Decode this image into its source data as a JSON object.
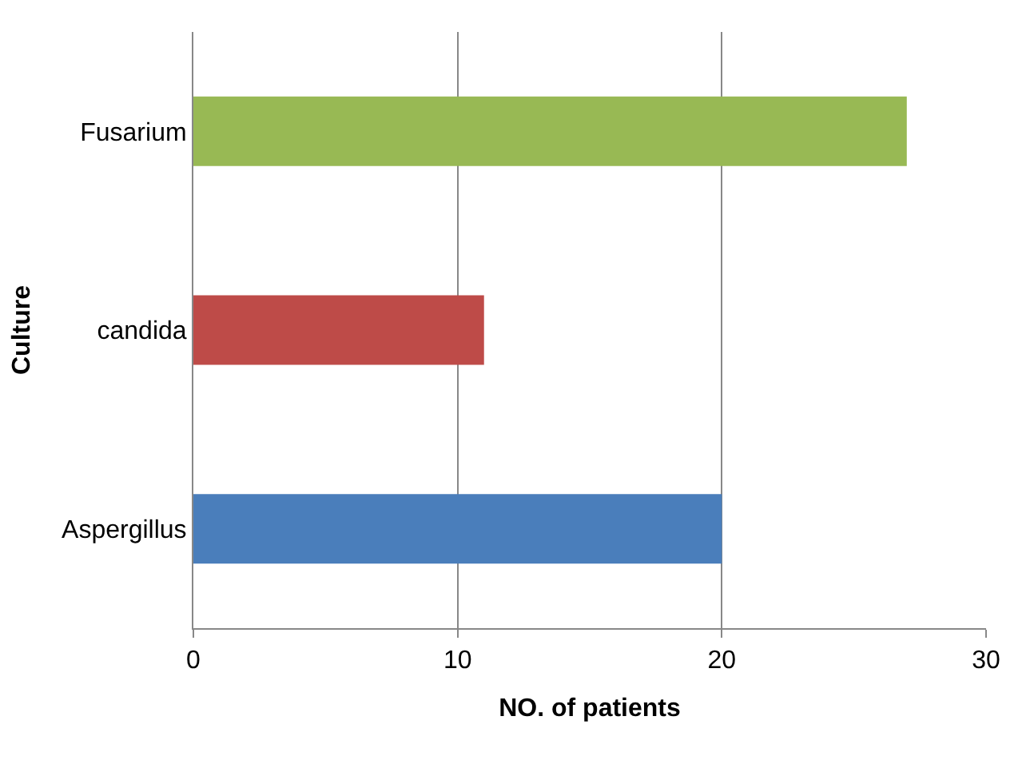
{
  "chart_data": {
    "type": "bar",
    "orientation": "horizontal",
    "categories": [
      "Fusarium",
      "candida",
      "Aspergillus"
    ],
    "values": [
      27,
      11,
      20
    ],
    "colors": [
      "#98b954",
      "#be4b48",
      "#4a7ebb"
    ],
    "xlabel": "NO. of patients",
    "ylabel": "Culture",
    "xlim": [
      0,
      30
    ],
    "xticks": [
      0,
      10,
      20,
      30
    ],
    "grid": "x",
    "legend": false
  }
}
